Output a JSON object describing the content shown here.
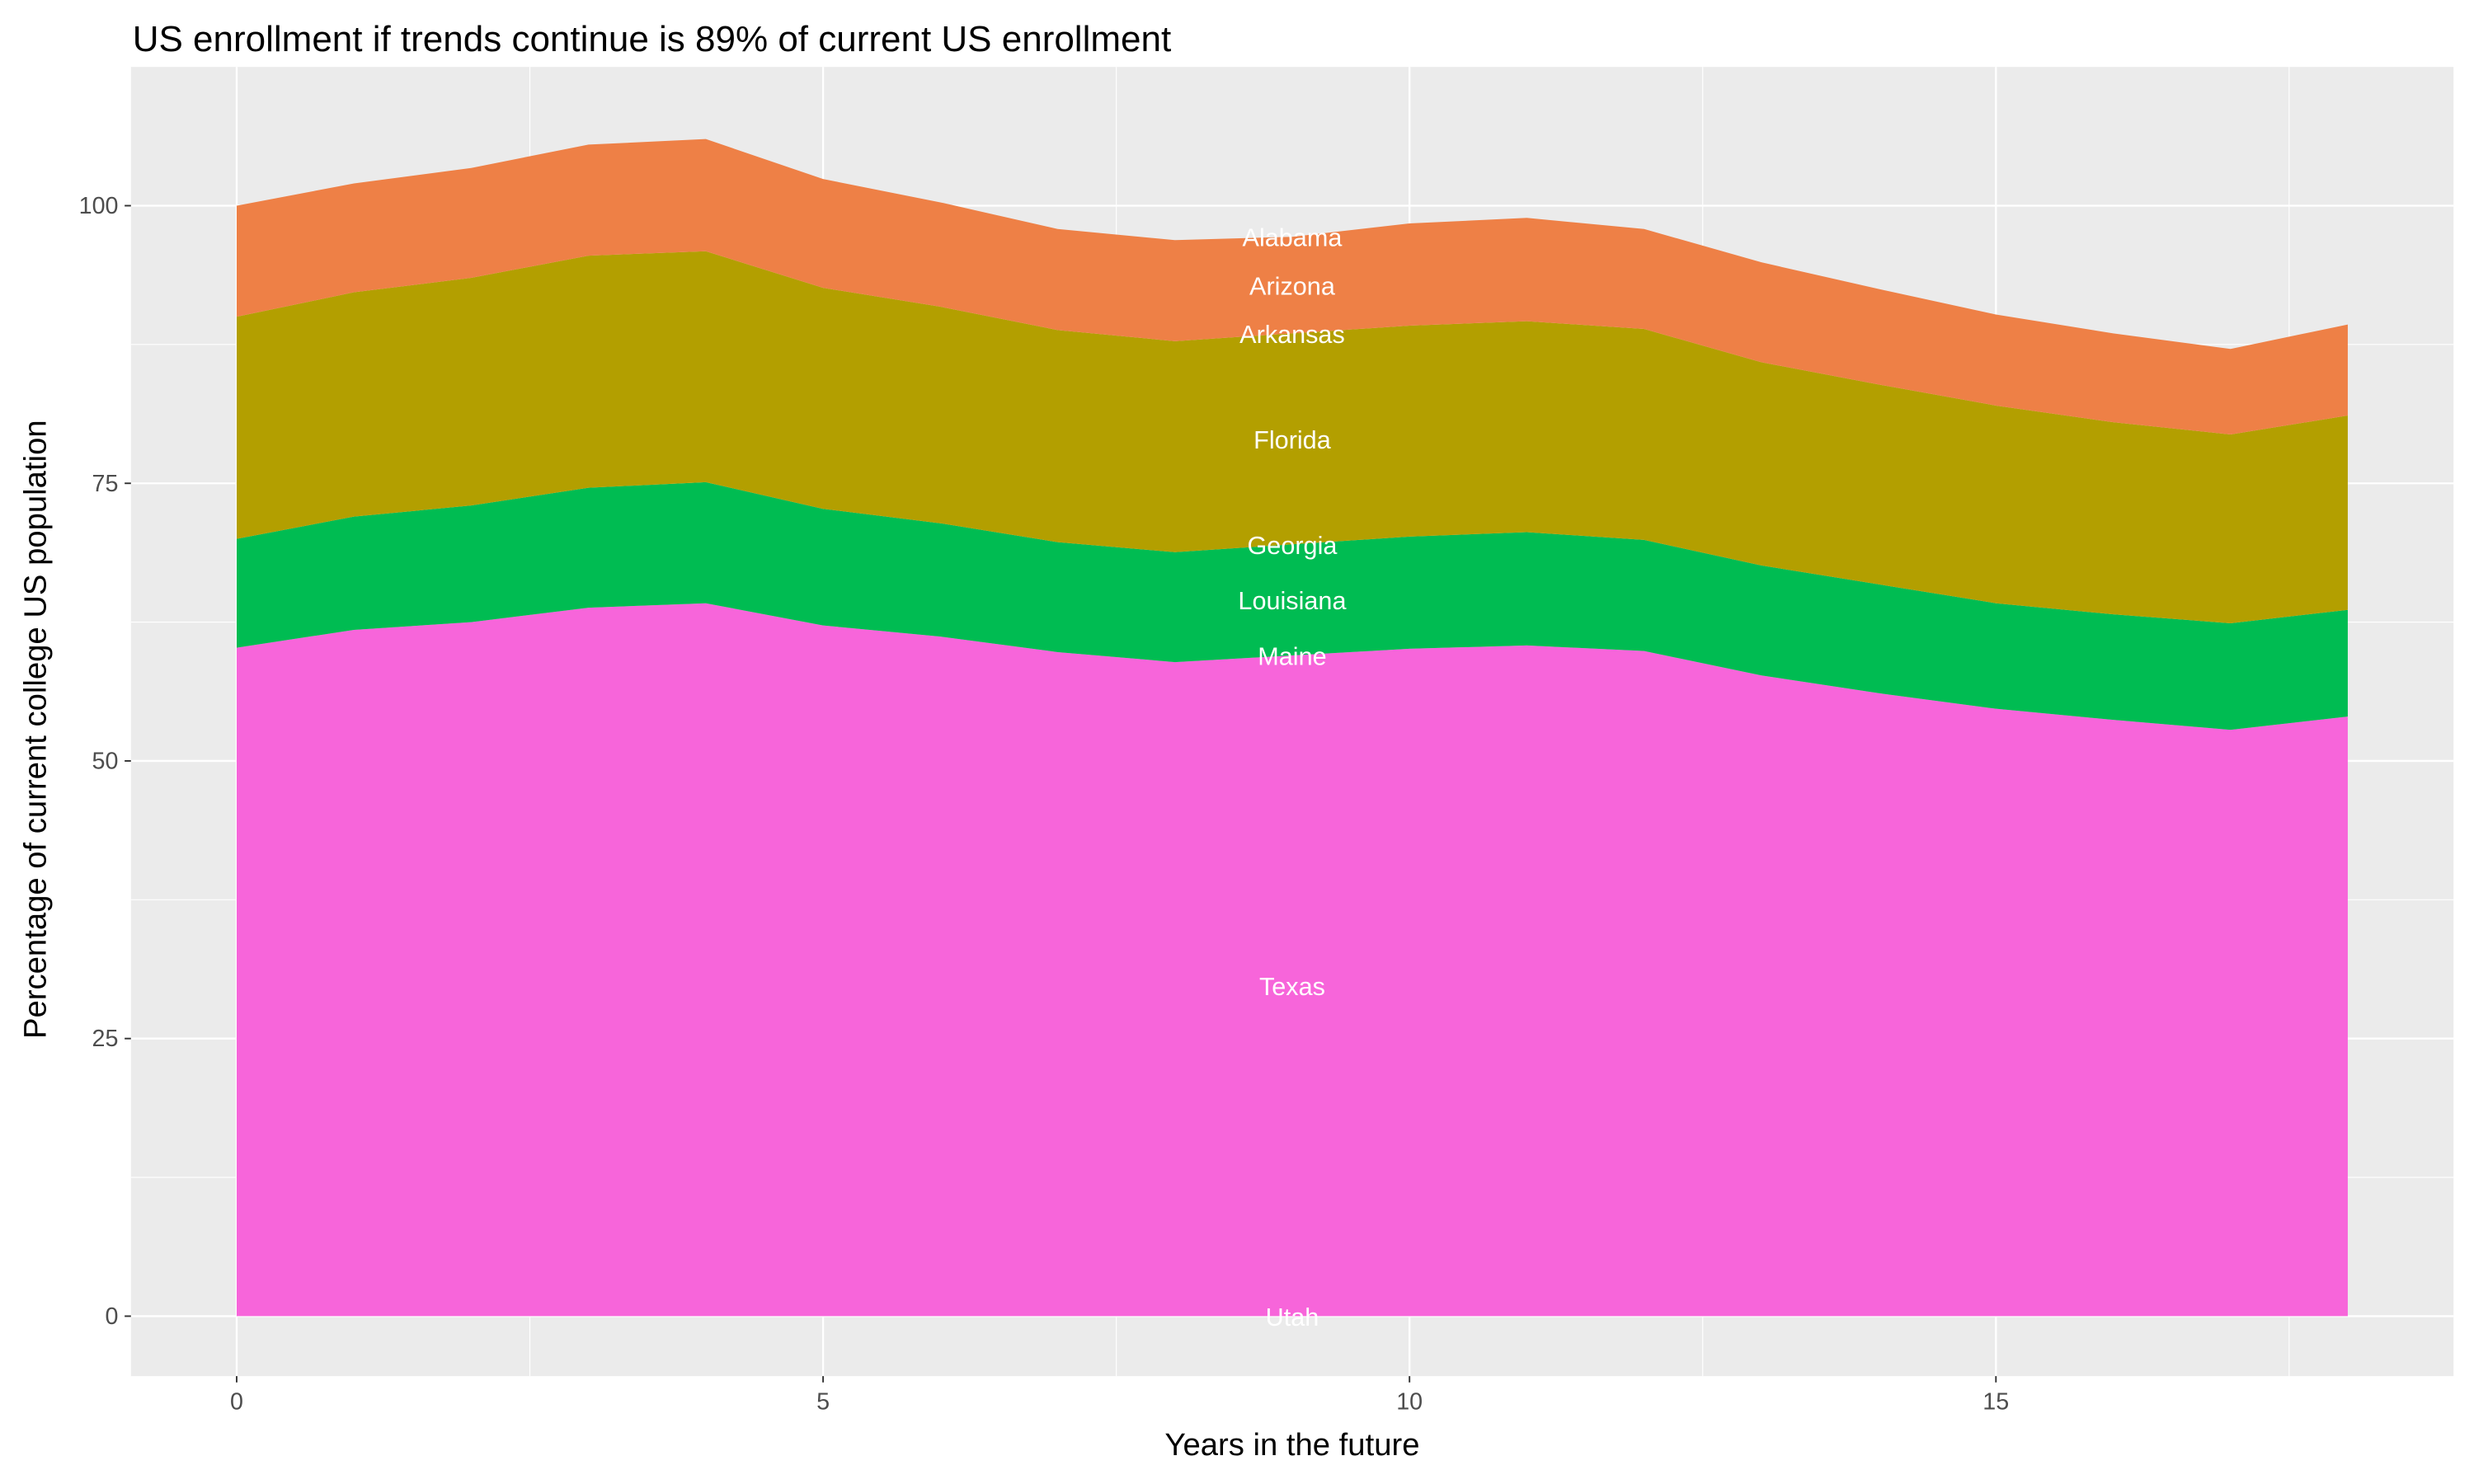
{
  "chart_data": {
    "type": "area",
    "stacked": true,
    "title": "US enrollment if trends continue is 89% of current US enrollment",
    "xlabel": "Years in the future",
    "ylabel": "Percentage of current college US population",
    "xlim": [
      -1.8,
      18.8
    ],
    "ylim": [
      -5.5,
      115
    ],
    "xticks": [
      0,
      5,
      10,
      15
    ],
    "yticks": [
      0,
      25,
      50,
      75,
      100
    ],
    "grid": true,
    "legend": "none",
    "label_x": 9,
    "x": [
      0,
      1,
      2,
      3,
      4,
      5,
      6,
      7,
      8,
      9,
      10,
      11,
      12,
      13,
      14,
      15,
      16,
      17,
      18
    ],
    "series": [
      {
        "name": "Utah",
        "color": "#FF61C3",
        "values": [
          0,
          0,
          0,
          0,
          0,
          0,
          0,
          0,
          0,
          0,
          0,
          0,
          0,
          0,
          0,
          0,
          0,
          0,
          0
        ]
      },
      {
        "name": "Texas",
        "color": "#F765DA",
        "values": [
          60.2,
          61.8,
          62.5,
          63.8,
          64.2,
          62.2,
          61.2,
          59.8,
          58.9,
          59.5,
          60.1,
          60.4,
          59.9,
          57.7,
          56.1,
          54.7,
          53.7,
          52.8,
          54.0
        ]
      },
      {
        "name": "Maine",
        "color": "#619CFF",
        "values": [
          0,
          0,
          0,
          0,
          0,
          0,
          0,
          0,
          0,
          0,
          0,
          0,
          0,
          0,
          0,
          0,
          0,
          0,
          0
        ]
      },
      {
        "name": "Louisiana",
        "color": "#00BC52",
        "values": [
          9.8,
          10.2,
          10.5,
          10.8,
          10.9,
          10.5,
          10.2,
          9.9,
          9.9,
          10.0,
          10.1,
          10.2,
          10.0,
          9.9,
          9.8,
          9.5,
          9.5,
          9.6,
          9.6
        ]
      },
      {
        "name": "Georgia",
        "color": "#00C19F",
        "values": [
          0,
          0,
          0,
          0,
          0,
          0,
          0,
          0,
          0,
          0,
          0,
          0,
          0,
          0,
          0,
          0,
          0,
          0,
          0
        ]
      },
      {
        "name": "Florida",
        "color": "#B39F00",
        "values": [
          20.0,
          20.2,
          20.5,
          20.9,
          20.8,
          19.9,
          19.5,
          19.1,
          19.0,
          19.0,
          19.0,
          19.0,
          19.0,
          18.3,
          18.0,
          17.8,
          17.3,
          17.0,
          17.5
        ]
      },
      {
        "name": "Arkansas",
        "color": "#93AA00",
        "values": [
          0,
          0,
          0,
          0,
          0,
          0,
          0,
          0,
          0,
          0,
          0,
          0,
          0,
          0,
          0,
          0,
          0,
          0,
          0
        ]
      },
      {
        "name": "Arizona",
        "color": "#EE8046",
        "values": [
          10.0,
          9.8,
          9.9,
          10.0,
          10.1,
          9.8,
          9.4,
          9.1,
          9.1,
          8.7,
          9.2,
          9.3,
          9.0,
          9.0,
          8.6,
          8.2,
          8.0,
          7.7,
          8.2
        ]
      },
      {
        "name": "Alabama",
        "color": "#F8766D",
        "values": [
          0,
          0,
          0,
          0,
          0,
          0,
          0,
          0,
          0,
          0,
          0,
          0,
          0,
          0,
          0,
          0,
          0,
          0,
          0
        ]
      }
    ],
    "panel_color": "#EBEBEB",
    "label_color": "#FFFFFF"
  }
}
